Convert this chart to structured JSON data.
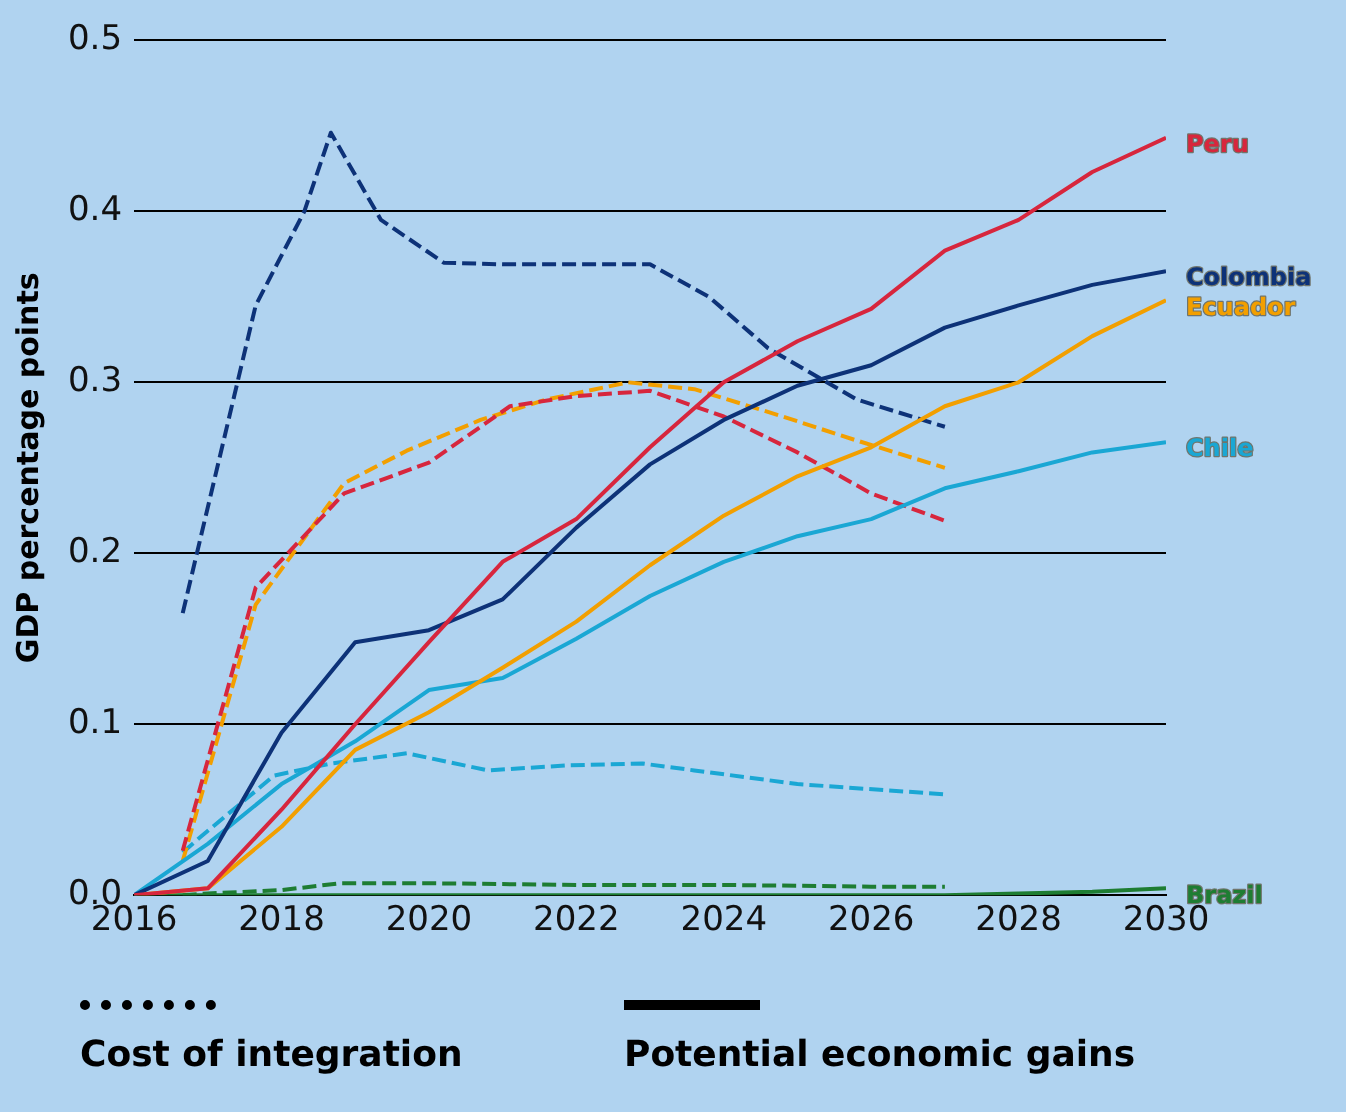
{
  "chart_data": {
    "type": "line",
    "ylabel": "GDP percentage points",
    "xlim": [
      2016,
      2030
    ],
    "xticks": [
      2016,
      2018,
      2020,
      2022,
      2024,
      2026,
      2028,
      2030
    ],
    "ylim": [
      0,
      0.5
    ],
    "yticks": [
      {
        "value": 0,
        "label": "0.0"
      },
      0.1,
      0.2,
      0.3,
      0.4,
      0.5
    ],
    "grid": "y",
    "marker": "none",
    "legend": false,
    "annotations": [
      "Cost of integration",
      "Potential economic gains"
    ],
    "series": [
      {
        "name": "Peru",
        "color": "#d7263d",
        "x": [
          2016,
          2017,
          2018,
          2019,
          2020,
          2021,
          2022,
          2023,
          2024,
          2025,
          2026,
          2027,
          2028,
          2029,
          2030
        ],
        "values": [
          0,
          0.004,
          0.05,
          0.1,
          0.148,
          0.195,
          0.22,
          0.262,
          0.3,
          0.324,
          0.343,
          0.377,
          0.395,
          0.423,
          0.443
        ]
      },
      {
        "name": "Colombia",
        "color": "#0d3278",
        "x": [
          2016,
          2017,
          2018,
          2019,
          2020,
          2021,
          2022,
          2023,
          2024,
          2025,
          2026,
          2027,
          2028,
          2029,
          2030
        ],
        "values": [
          0,
          0.02,
          0.095,
          0.148,
          0.155,
          0.173,
          0.215,
          0.252,
          0.278,
          0.298,
          0.31,
          0.332,
          0.345,
          0.357,
          0.365
        ]
      },
      {
        "name": "Ecuador",
        "color": "#f29f00",
        "x": [
          2016,
          2017,
          2018,
          2019,
          2020,
          2021,
          2022,
          2023,
          2024,
          2025,
          2026,
          2027,
          2028,
          2029,
          2030
        ],
        "values": [
          0,
          0.004,
          0.04,
          0.085,
          0.107,
          0.133,
          0.16,
          0.193,
          0.222,
          0.245,
          0.262,
          0.286,
          0.3,
          0.327,
          0.348
        ]
      },
      {
        "name": "Chile",
        "color": "#1aa7d4",
        "x": [
          2016,
          2017,
          2018,
          2019,
          2020,
          2021,
          2022,
          2023,
          2024,
          2025,
          2026,
          2027,
          2028,
          2029,
          2030
        ],
        "values": [
          0,
          0.03,
          0.065,
          0.09,
          0.12,
          0.127,
          0.15,
          0.175,
          0.195,
          0.21,
          0.22,
          0.238,
          0.248,
          0.259,
          0.265
        ]
      },
      {
        "name": "Brazil",
        "color": "#1e7d32",
        "x": [
          2016,
          2017,
          2018,
          2019,
          2020,
          2021,
          2022,
          2023,
          2024,
          2025,
          2026,
          2027,
          2028,
          2029,
          2030
        ],
        "values": [
          0,
          0,
          0,
          0,
          0,
          0,
          0,
          0,
          0,
          0,
          0,
          0,
          0.001,
          0.002,
          0.004
        ]
      },
      {
        "color": "#0d3278",
        "line_style": "dashed",
        "x": [
          2016.66,
          2017.65,
          2018.31,
          2018.67,
          2019.35,
          2020.2,
          2021,
          2022,
          2023,
          2023.8,
          2024.6,
          2025.8,
          2027
        ],
        "values": [
          0.165,
          0.345,
          0.4,
          0.446,
          0.395,
          0.37,
          0.369,
          0.369,
          0.369,
          0.35,
          0.32,
          0.29,
          0.274
        ]
      },
      {
        "color": "#d7263d",
        "line_style": "dashed",
        "x": [
          2016.66,
          2017.65,
          2018.85,
          2020,
          2021.1,
          2022,
          2023,
          2024,
          2025,
          2026,
          2027
        ],
        "values": [
          0.026,
          0.18,
          0.235,
          0.253,
          0.286,
          0.292,
          0.295,
          0.28,
          0.259,
          0.235,
          0.219
        ]
      },
      {
        "color": "#f29f00",
        "line_style": "dashed",
        "x": [
          2016.66,
          2017.65,
          2018.85,
          2019.7,
          2020.7,
          2021.6,
          2022.7,
          2023.6,
          2024.8,
          2025.8,
          2027
        ],
        "values": [
          0.02,
          0.17,
          0.241,
          0.26,
          0.278,
          0.29,
          0.3,
          0.296,
          0.28,
          0.266,
          0.25
        ]
      },
      {
        "color": "#1aa7d4",
        "line_style": "dashed",
        "x": [
          2016.66,
          2016.9,
          2017.9,
          2018.67,
          2019.7,
          2020.8,
          2021.9,
          2022.9,
          2023.6,
          2025,
          2027
        ],
        "values": [
          0.025,
          0.034,
          0.07,
          0.077,
          0.083,
          0.073,
          0.076,
          0.077,
          0.073,
          0.065,
          0.059
        ]
      },
      {
        "color": "#1e7d32",
        "line_style": "dashed",
        "x": [
          2016.66,
          2017,
          2018,
          2018.8,
          2020,
          2022,
          2024,
          2026,
          2027
        ],
        "values": [
          0,
          0.001,
          0.003,
          0.007,
          0.007,
          0.006,
          0.006,
          0.005,
          0.005
        ]
      }
    ]
  }
}
